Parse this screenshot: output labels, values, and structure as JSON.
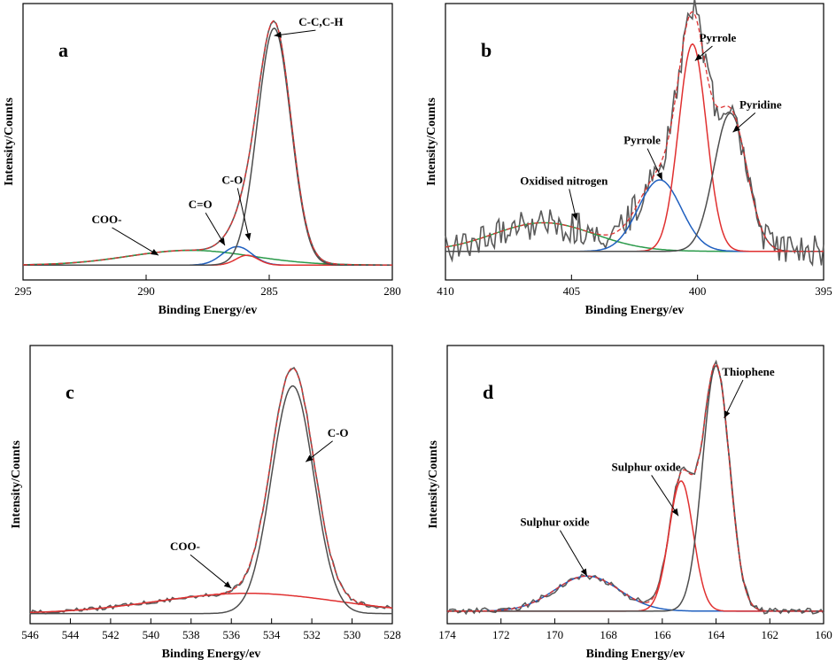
{
  "colors": {
    "raw": "#5a5a5a",
    "fit_envelope": "#d33333",
    "grey_component": "#4d4d4d",
    "red_component": "#e03030",
    "blue_component": "#1f5fbf",
    "green_component": "#2a9a4a"
  },
  "chart_data": [
    {
      "type": "line",
      "panel": "a",
      "xlabel": "Binding Energy/ev",
      "ylabel": "Intensity/Counts",
      "xlim": [
        295,
        280
      ],
      "x_reversed": true,
      "xticks": [
        295,
        290,
        285,
        280
      ],
      "ylim": [
        -0.06,
        1.06
      ],
      "y_ticks_shown": false,
      "raw_noise": 0,
      "components": [
        {
          "center": 288.2,
          "height": 0.06,
          "sigma": 2.5,
          "color": "#2a9a4a"
        },
        {
          "center": 286.3,
          "height": 0.075,
          "sigma": 0.6,
          "color": "#1f5fbf"
        },
        {
          "center": 285.9,
          "height": 0.04,
          "sigma": 0.45,
          "color": "#e03030"
        },
        {
          "center": 284.8,
          "height": 0.96,
          "sigma": 0.68,
          "color": "#4d4d4d"
        }
      ],
      "annotations": [
        {
          "text": "C-C,C-H",
          "peak_x": 284.8,
          "peak_y": 0.93,
          "tx": 282.9,
          "ty": 0.97
        },
        {
          "text": "C-O",
          "peak_x": 285.8,
          "peak_y": 0.1,
          "tx": 286.5,
          "ty": 0.33
        },
        {
          "text": "C=O",
          "peak_x": 286.8,
          "peak_y": 0.08,
          "tx": 287.8,
          "ty": 0.23
        },
        {
          "text": "COO-",
          "peak_x": 289.5,
          "peak_y": 0.04,
          "tx": 291.6,
          "ty": 0.17
        }
      ]
    },
    {
      "type": "line",
      "panel": "b",
      "xlabel": "Binding Energy/ev",
      "ylabel": "Intensity/Counts",
      "xlim": [
        410,
        395
      ],
      "x_reversed": true,
      "xticks": [
        410,
        405,
        400,
        395
      ],
      "ylim": [
        -0.12,
        1.04
      ],
      "y_ticks_shown": false,
      "raw_noise": 0.07,
      "components": [
        {
          "center": 406.1,
          "height": 0.12,
          "sigma": 2.0,
          "color": "#2a9a4a"
        },
        {
          "center": 401.5,
          "height": 0.3,
          "sigma": 0.85,
          "color": "#1f5fbf"
        },
        {
          "center": 400.2,
          "height": 0.87,
          "sigma": 0.55,
          "color": "#e03030"
        },
        {
          "center": 398.7,
          "height": 0.58,
          "sigma": 0.65,
          "color": "#4d4d4d"
        }
      ],
      "annotations": [
        {
          "text": "Pyrrole",
          "peak_x": 400.1,
          "peak_y": 0.8,
          "tx": 399.2,
          "ty": 0.88
        },
        {
          "text": "Pyridine",
          "peak_x": 398.6,
          "peak_y": 0.5,
          "tx": 397.5,
          "ty": 0.6
        },
        {
          "text": "Pyrrole",
          "peak_x": 401.4,
          "peak_y": 0.3,
          "tx": 402.2,
          "ty": 0.45
        },
        {
          "text": "Oxidised nitrogen",
          "peak_x": 404.8,
          "peak_y": 0.13,
          "tx": 405.3,
          "ty": 0.28
        }
      ]
    },
    {
      "type": "line",
      "panel": "c",
      "xlabel": "Binding Energy/ev",
      "ylabel": "Intensity/Counts",
      "xlim": [
        546,
        528
      ],
      "x_reversed": true,
      "xticks": [
        546,
        544,
        542,
        540,
        538,
        536,
        534,
        532,
        530,
        528
      ],
      "ylim": [
        -0.04,
        1.06
      ],
      "y_ticks_shown": false,
      "raw_noise": 0.008,
      "components": [
        {
          "center": 535.2,
          "height": 0.08,
          "sigma": 4.5,
          "color": "#e03030"
        },
        {
          "center": 532.95,
          "height": 0.9,
          "sigma": 1.05,
          "color": "#4d4d4d"
        }
      ],
      "annotations": [
        {
          "text": "C-O",
          "peak_x": 532.3,
          "peak_y": 0.6,
          "tx": 530.7,
          "ty": 0.7
        },
        {
          "text": "COO-",
          "peak_x": 536.0,
          "peak_y": 0.1,
          "tx": 538.3,
          "ty": 0.25
        }
      ]
    },
    {
      "type": "line",
      "panel": "d",
      "xlabel": "Binding Energy/ev",
      "ylabel": "Intensity/Counts",
      "xlim": [
        174,
        160
      ],
      "x_reversed": true,
      "xticks": [
        174,
        172,
        170,
        168,
        166,
        164,
        162,
        160
      ],
      "ylim": [
        -0.05,
        1.06
      ],
      "y_ticks_shown": false,
      "raw_noise": 0.012,
      "components": [
        {
          "center": 168.8,
          "height": 0.14,
          "sigma": 1.2,
          "color": "#1f5fbf"
        },
        {
          "center": 165.3,
          "height": 0.52,
          "sigma": 0.45,
          "color": "#e03030"
        },
        {
          "center": 164.0,
          "height": 0.98,
          "sigma": 0.5,
          "color": "#4d4d4d"
        }
      ],
      "annotations": [
        {
          "text": "Thiophene",
          "peak_x": 163.7,
          "peak_y": 0.77,
          "tx": 162.8,
          "ty": 0.94
        },
        {
          "text": "Sulphur oxide",
          "peak_x": 165.4,
          "peak_y": 0.38,
          "tx": 166.6,
          "ty": 0.56
        },
        {
          "text": "Sulphur oxide",
          "peak_x": 168.8,
          "peak_y": 0.14,
          "tx": 170.0,
          "ty": 0.34
        }
      ]
    }
  ]
}
